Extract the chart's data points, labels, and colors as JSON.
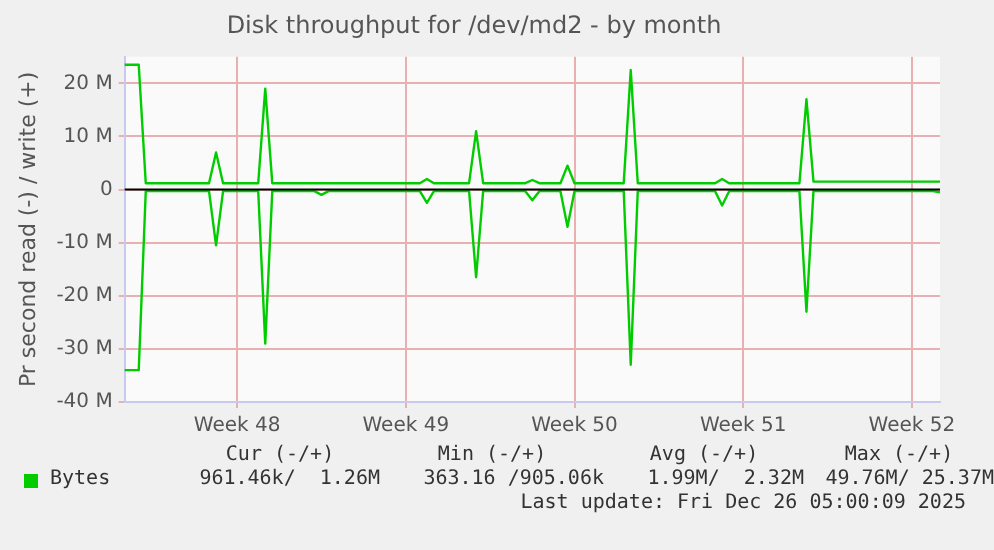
{
  "chart_data": {
    "type": "line",
    "title": "Disk throughput for /dev/md2 - by month",
    "ylabel": "Pr second read (-) / write (+)",
    "categories": [
      null,
      null,
      null,
      null,
      null,
      null,
      null,
      null,
      null,
      null,
      null,
      null,
      null,
      null,
      null,
      null,
      "Week 48",
      null,
      null,
      null,
      null,
      null,
      null,
      null,
      null,
      null,
      null,
      null,
      null,
      null,
      null,
      null,
      null,
      null,
      null,
      null,
      null,
      null,
      null,
      null,
      "Week 49",
      null,
      null,
      null,
      null,
      null,
      null,
      null,
      null,
      null,
      null,
      null,
      null,
      null,
      null,
      null,
      null,
      null,
      null,
      null,
      null,
      null,
      null,
      null,
      "Week 50",
      null,
      null,
      null,
      null,
      null,
      null,
      null,
      null,
      null,
      null,
      null,
      null,
      null,
      null,
      null,
      null,
      null,
      null,
      null,
      null,
      null,
      null,
      null,
      "Week 51",
      null,
      null,
      null,
      null,
      null,
      null,
      null,
      null,
      null,
      null,
      null,
      null,
      null,
      null,
      null,
      null,
      null,
      null,
      null,
      null,
      null,
      null,
      null,
      "Week 52",
      null,
      null,
      null,
      null
    ],
    "ylim": [
      -40,
      25
    ],
    "yticks": [
      {
        "value": -40,
        "label": "-40 M"
      },
      {
        "value": -30,
        "label": "-30 M"
      },
      {
        "value": -20,
        "label": "-20 M"
      },
      {
        "value": -10,
        "label": "-10 M"
      },
      0,
      {
        "value": 10,
        "label": "10 M"
      },
      {
        "value": 20,
        "label": "20 M"
      }
    ],
    "grid": true,
    "legend": "bottom left",
    "marker": "none",
    "line_style": "solid",
    "ref_lines": [
      {
        "axis": "y",
        "value": 0,
        "color": "#000000"
      }
    ],
    "series": [
      {
        "name": "Bytes",
        "color": "#00cc00",
        "values": [
          23.5,
          23.5,
          23.5,
          1.2,
          1.2,
          1.2,
          1.2,
          1.2,
          1.2,
          1.2,
          1.2,
          1.2,
          1.2,
          7,
          1.2,
          1.2,
          1.2,
          1.2,
          1.2,
          1.2,
          19,
          1.2,
          1.2,
          1.2,
          1.2,
          1.2,
          1.2,
          1.2,
          1.2,
          1.2,
          1.2,
          1.2,
          1.2,
          1.2,
          1.2,
          1.2,
          1.2,
          1.2,
          1.2,
          1.2,
          1.2,
          1.2,
          1.2,
          2,
          1.2,
          1.2,
          1.2,
          1.2,
          1.2,
          1.2,
          11,
          1.2,
          1.2,
          1.2,
          1.2,
          1.2,
          1.2,
          1.2,
          1.8,
          1.2,
          1.2,
          1.2,
          1.2,
          4.5,
          1.2,
          1.2,
          1.2,
          1.2,
          1.2,
          1.2,
          1.2,
          1.2,
          22.5,
          1.2,
          1.2,
          1.2,
          1.2,
          1.2,
          1.2,
          1.2,
          1.2,
          1.2,
          1.2,
          1.2,
          1.2,
          2,
          1.2,
          1.2,
          1.2,
          1.2,
          1.2,
          1.2,
          1.2,
          1.2,
          1.2,
          1.2,
          1.2,
          17,
          1.5,
          1.5,
          1.5,
          1.5,
          1.5,
          1.5,
          1.5,
          1.5,
          1.5,
          1.5,
          1.5,
          1.5,
          1.5,
          1.5,
          1.5,
          1.5,
          1.5,
          1.5,
          1.5
        ]
      },
      {
        "color": "#00cc00",
        "values": [
          -34,
          -34,
          -34,
          -0.3,
          -0.3,
          -0.3,
          -0.3,
          -0.3,
          -0.3,
          -0.3,
          -0.3,
          -0.3,
          -0.3,
          -10.5,
          -0.3,
          -0.3,
          -0.3,
          -0.3,
          -0.3,
          -0.3,
          -29,
          -0.3,
          -0.3,
          -0.3,
          -0.3,
          -0.3,
          -0.3,
          -0.3,
          -1,
          -0.3,
          -0.3,
          -0.3,
          -0.3,
          -0.3,
          -0.3,
          -0.3,
          -0.3,
          -0.3,
          -0.3,
          -0.3,
          -0.3,
          -0.3,
          -0.3,
          -2.5,
          -0.3,
          -0.3,
          -0.3,
          -0.3,
          -0.3,
          -0.3,
          -16.5,
          -0.3,
          -0.3,
          -0.3,
          -0.3,
          -0.3,
          -0.3,
          -0.3,
          -2,
          -0.3,
          -0.3,
          -0.3,
          -0.3,
          -7,
          -0.3,
          -0.3,
          -0.3,
          -0.3,
          -0.3,
          -0.3,
          -0.3,
          -0.3,
          -33,
          -0.3,
          -0.3,
          -0.3,
          -0.3,
          -0.3,
          -0.3,
          -0.3,
          -0.3,
          -0.3,
          -0.3,
          -0.3,
          -0.3,
          -3,
          -0.3,
          -0.3,
          -0.3,
          -0.3,
          -0.3,
          -0.3,
          -0.3,
          -0.3,
          -0.3,
          -0.3,
          -0.3,
          -23,
          -0.3,
          -0.3,
          -0.3,
          -0.3,
          -0.3,
          -0.3,
          -0.3,
          -0.3,
          -0.3,
          -0.3,
          -0.3,
          -0.3,
          -0.3,
          -0.3,
          -0.3,
          -0.3,
          -0.3,
          -0.3,
          -0.5
        ]
      }
    ],
    "annotations": [
      "Cur (-/+)",
      "Min (-/+)",
      "Avg (-/+)",
      "Max (-/+)",
      "961.46k/  1.26M",
      "363.16 /905.06k",
      "1.99M/  2.32M",
      "49.76M/ 25.37M",
      "Last update: Fri Dec 26 05:00:09 2025"
    ]
  }
}
